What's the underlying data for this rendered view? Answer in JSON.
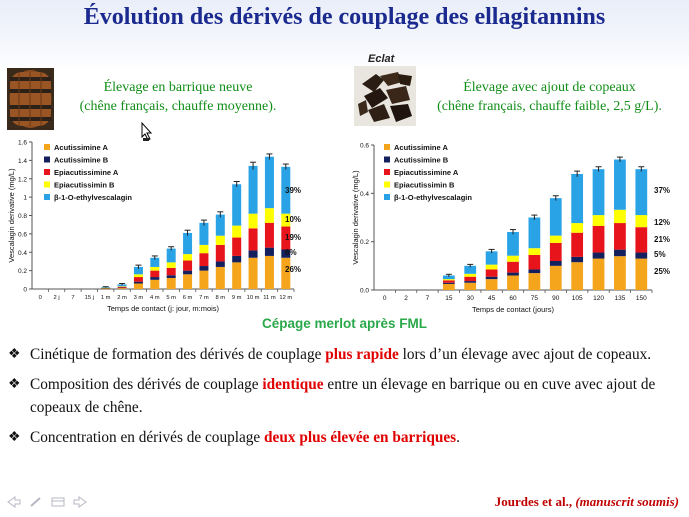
{
  "slide": {
    "title": "Évolution des dérivés de couplage des ellagitannins",
    "left_subtitle_1": "Élevage en barrique neuve",
    "left_subtitle_2": "(chêne français, chauffe moyenne).",
    "right_subtitle_1": "Élevage avec ajout de copeaux",
    "right_subtitle_2": "(chêne français, chauffe faible, 2,5 g/L).",
    "eclat_label": "Eclat",
    "cepage": "Cépage merlot après FML",
    "bullets": [
      {
        "pre": "Cinétique de formation des dérivés de couplage ",
        "emph": "plus rapide",
        "post": " lors d’un élevage avec ajout de copeaux."
      },
      {
        "pre": "Composition des dérivés de couplage ",
        "emph": "identique",
        "post": " entre un élevage en barrique ou en cuve avec ajout de copeaux de chêne."
      },
      {
        "pre": "Concentration en dérivés de couplage ",
        "emph": "deux plus élevée en barriques",
        "post": "."
      }
    ],
    "citation_authors": "Jourdes et al., ",
    "citation_note": "(manuscrit soumis)"
  },
  "colors": {
    "title": "#1b2a8f",
    "subtitle": "#118e18",
    "highlight": "#e00000",
    "citation": "#c00000",
    "series": [
      "#f5a51b",
      "#14205e",
      "#e8141c",
      "#ffff00",
      "#2aa3e6"
    ]
  },
  "icons": [
    "bullet-diamond-icon",
    "nav-prev-icon",
    "nav-pen-icon",
    "nav-menu-icon",
    "nav-next-icon",
    "mouse-cursor-icon"
  ],
  "chart_data": [
    {
      "type": "bar",
      "stacked": true,
      "ylabel": "Vescalagin derivative (mg/L)",
      "xlabel": "Temps de contact (j: jour, m:mois)",
      "ylim": [
        0,
        1.6
      ],
      "yticks": [
        "0",
        "0.2",
        "0.4",
        "0.6",
        "0.8",
        "1",
        "1.2",
        "1.4",
        "1.6"
      ],
      "categories": [
        "0",
        "2 j",
        "7",
        "15 j",
        "1 m",
        "2 m",
        "3 m",
        "4 m",
        "5 m",
        "6 m",
        "7 m",
        "8 m",
        "9 m",
        "10 m",
        "11 m",
        "12 m"
      ],
      "series": [
        {
          "name": "Acutissimine A",
          "values": [
            0,
            0,
            0,
            0,
            0.005,
            0.01,
            0.06,
            0.1,
            0.12,
            0.16,
            0.2,
            0.24,
            0.29,
            0.34,
            0.36,
            0.34
          ]
        },
        {
          "name": "Acutissimine B",
          "values": [
            0,
            0,
            0,
            0,
            0.002,
            0.005,
            0.02,
            0.03,
            0.03,
            0.04,
            0.05,
            0.06,
            0.07,
            0.08,
            0.09,
            0.09
          ]
        },
        {
          "name": "Epiacutissimine A",
          "values": [
            0,
            0,
            0,
            0,
            0.004,
            0.01,
            0.05,
            0.07,
            0.08,
            0.11,
            0.14,
            0.18,
            0.2,
            0.24,
            0.27,
            0.25
          ]
        },
        {
          "name": "Epiacutissimin B",
          "values": [
            0,
            0,
            0,
            0,
            0.002,
            0.005,
            0.03,
            0.04,
            0.06,
            0.07,
            0.09,
            0.1,
            0.13,
            0.16,
            0.16,
            0.14
          ]
        },
        {
          "name": "β-1-O-ethylvescalagin",
          "values": [
            0,
            0,
            0,
            0,
            0.007,
            0.02,
            0.08,
            0.1,
            0.15,
            0.23,
            0.24,
            0.23,
            0.45,
            0.52,
            0.56,
            0.51
          ]
        }
      ],
      "errors": [
        0,
        0,
        0,
        0,
        0.005,
        0.01,
        0.02,
        0.02,
        0.02,
        0.03,
        0.03,
        0.03,
        0.03,
        0.04,
        0.03,
        0.03
      ],
      "percent_labels": [
        "39%",
        "10%",
        "19%",
        "6%",
        "26%"
      ]
    },
    {
      "type": "bar",
      "stacked": true,
      "ylabel": "Vescalagin derivative (mg/L)",
      "xlabel": "Temps de contact (jours)",
      "ylim": [
        0,
        0.6
      ],
      "yticks": [
        "0.0",
        "0.2",
        "0.4",
        "0.6"
      ],
      "categories": [
        "0",
        "2",
        "7",
        "15",
        "30",
        "45",
        "60",
        "75",
        "90",
        "105",
        "120",
        "135",
        "150"
      ],
      "series": [
        {
          "name": "Acutissimine A",
          "values": [
            0,
            0,
            0,
            0.025,
            0.03,
            0.045,
            0.06,
            0.07,
            0.1,
            0.115,
            0.13,
            0.14,
            0.13
          ]
        },
        {
          "name": "Acutissimine B",
          "values": [
            0,
            0,
            0,
            0.005,
            0.007,
            0.01,
            0.012,
            0.015,
            0.02,
            0.022,
            0.025,
            0.027,
            0.025
          ]
        },
        {
          "name": "Epiacutissimine A",
          "values": [
            0,
            0,
            0,
            0.01,
            0.018,
            0.03,
            0.045,
            0.06,
            0.075,
            0.1,
            0.11,
            0.11,
            0.105
          ]
        },
        {
          "name": "Epiacutissimin B",
          "values": [
            0,
            0,
            0,
            0.005,
            0.012,
            0.02,
            0.025,
            0.028,
            0.03,
            0.04,
            0.045,
            0.055,
            0.05
          ]
        },
        {
          "name": "β-1-O-ethylvescalagin",
          "values": [
            0,
            0,
            0,
            0.015,
            0.033,
            0.055,
            0.098,
            0.127,
            0.155,
            0.203,
            0.19,
            0.208,
            0.19
          ]
        }
      ],
      "errors": [
        0,
        0,
        0,
        0.005,
        0.006,
        0.008,
        0.01,
        0.01,
        0.01,
        0.012,
        0.01,
        0.01,
        0.01
      ],
      "percent_labels": [
        "37%",
        "12%",
        "21%",
        "5%",
        "25%"
      ]
    }
  ]
}
